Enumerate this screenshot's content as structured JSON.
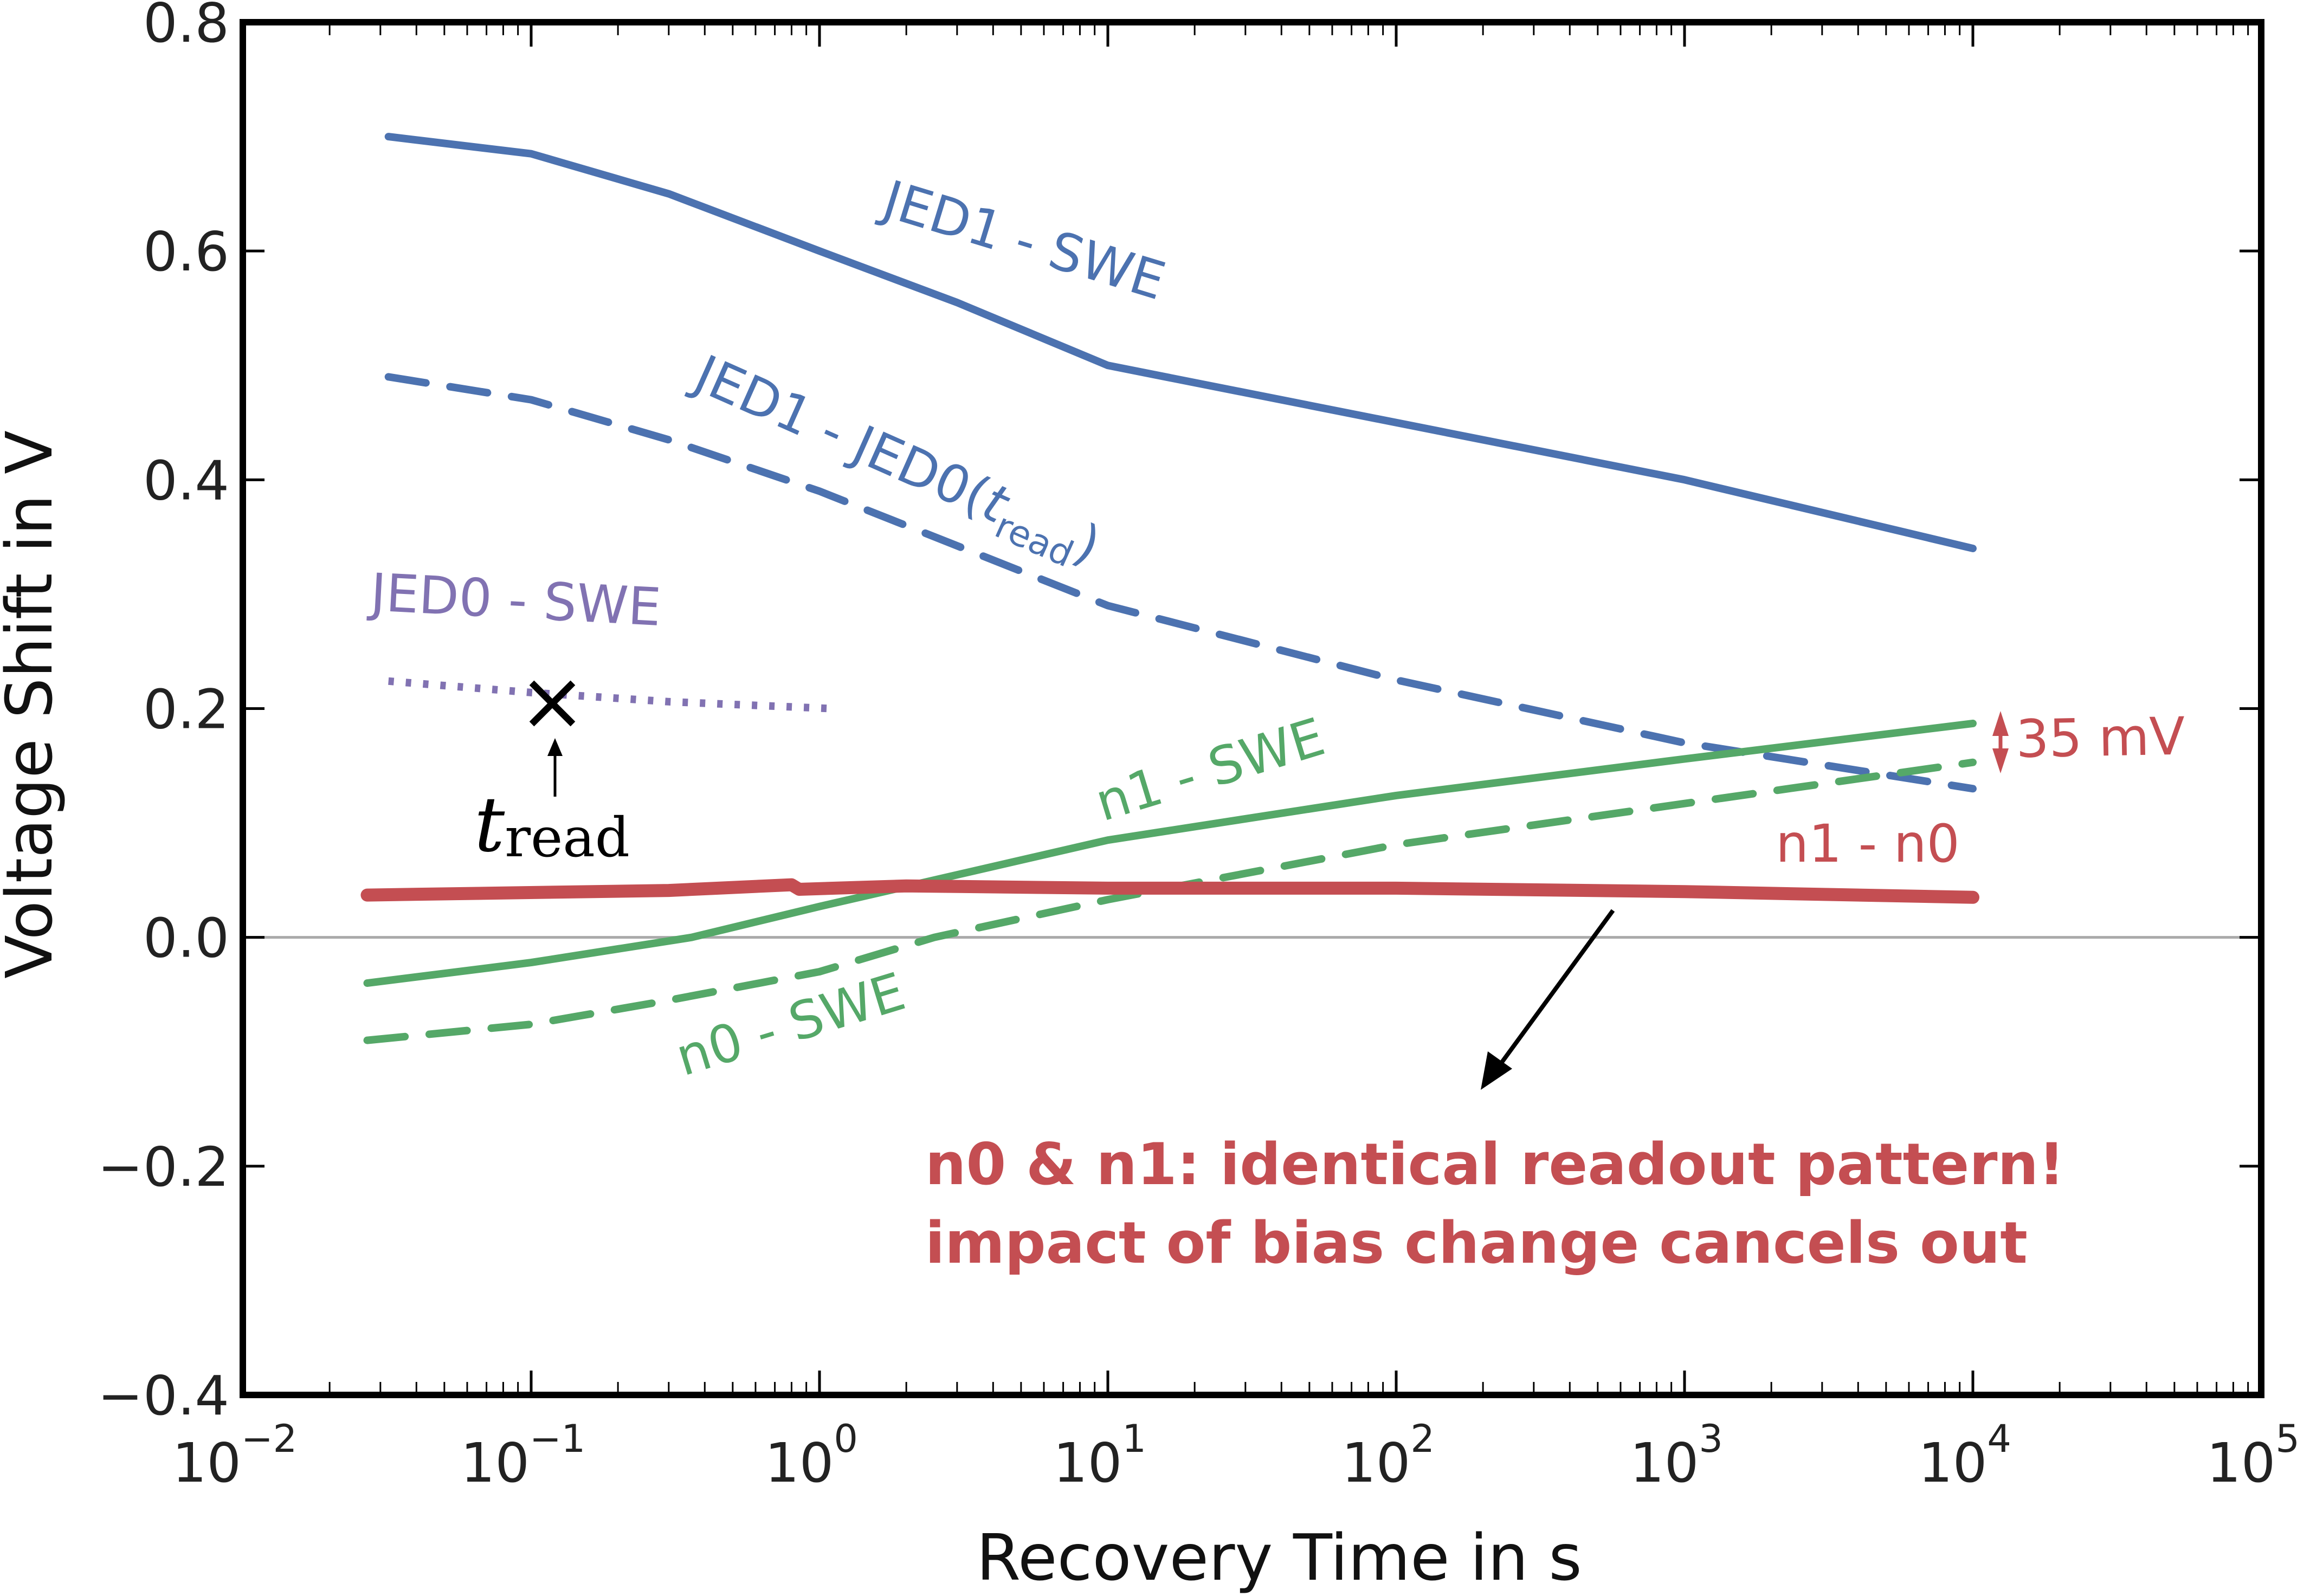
{
  "chart_data": {
    "type": "line",
    "xlabel": "Recovery Time in s",
    "ylabel": "Voltage Shift in V",
    "xscale": "log",
    "xlim": [
      0.01,
      100000
    ],
    "ylim": [
      -0.4,
      0.8
    ],
    "x_tick_labels": [
      {
        "base": "10",
        "exp": "−2"
      },
      {
        "base": "10",
        "exp": "−1"
      },
      {
        "base": "10",
        "exp": "0"
      },
      {
        "base": "10",
        "exp": "1"
      },
      {
        "base": "10",
        "exp": "2"
      },
      {
        "base": "10",
        "exp": "3"
      },
      {
        "base": "10",
        "exp": "4"
      },
      {
        "base": "10",
        "exp": "5"
      }
    ],
    "y_tick_labels": [
      "0.8",
      "0.6",
      "0.4",
      "0.2",
      "0.0",
      "−0.2",
      "−0.4"
    ],
    "y_ticks": [
      0.8,
      0.6,
      0.4,
      0.2,
      0.0,
      -0.2,
      -0.4
    ],
    "zero_line": true,
    "series": [
      {
        "name": "JED1 - SWE",
        "color": "#4C72B0",
        "style": "solid",
        "x": [
          0.032,
          0.1,
          0.3,
          1,
          3,
          10,
          100,
          1000,
          10000
        ],
        "y": [
          0.7,
          0.685,
          0.65,
          0.6,
          0.555,
          0.5,
          0.45,
          0.4,
          0.34
        ]
      },
      {
        "name": "JED1 - JED0(t_read)",
        "color": "#4C72B0",
        "style": "dashed",
        "x": [
          0.032,
          0.1,
          0.3,
          1,
          10,
          100,
          1000,
          10000
        ],
        "y": [
          0.49,
          0.47,
          0.435,
          0.39,
          0.29,
          0.225,
          0.17,
          0.13
        ]
      },
      {
        "name": "JED0 - SWE",
        "color": "#8172B2",
        "style": "dotted",
        "x": [
          0.032,
          0.1,
          0.3,
          1.1
        ],
        "y": [
          0.224,
          0.214,
          0.206,
          0.2
        ]
      },
      {
        "name": "n1 - SWE",
        "color": "#55A868",
        "style": "solid",
        "x": [
          0.027,
          0.1,
          0.36,
          1,
          10,
          100,
          1000,
          10000
        ],
        "y": [
          -0.04,
          -0.022,
          0.0,
          0.027,
          0.085,
          0.124,
          0.156,
          0.187
        ]
      },
      {
        "name": "n0 - SWE",
        "color": "#55A868",
        "style": "dashed",
        "x": [
          0.027,
          0.1,
          0.3,
          1,
          2.5,
          10,
          100,
          1000,
          10000
        ],
        "y": [
          -0.09,
          -0.076,
          -0.055,
          -0.03,
          0.0,
          0.033,
          0.081,
          0.117,
          0.153
        ]
      },
      {
        "name": "n1 - n0",
        "color": "#C44E52",
        "style": "solid",
        "x": [
          0.027,
          0.3,
          0.8,
          0.85,
          2,
          10,
          100,
          1000,
          10000
        ],
        "y": [
          0.037,
          0.041,
          0.046,
          0.042,
          0.045,
          0.043,
          0.043,
          0.04,
          0.035
        ]
      }
    ],
    "series_labels": {
      "jed1_swe": {
        "text": "JED1 - SWE"
      },
      "jed1_jed0": {
        "main": "JED1 - JED0(",
        "t": "t",
        "sub": "read",
        ")": ")"
      },
      "jed0_swe": {
        "text": "JED0 - SWE"
      },
      "n1_swe": {
        "text": "n1 - SWE"
      },
      "n0_swe": {
        "text": "n0 - SWE"
      },
      "n1_n0": {
        "text": "n1 - n0"
      }
    },
    "annotations": {
      "tread_marker": {
        "x": 0.117,
        "y": 0.212,
        "symbol": "×",
        "t": "t",
        "sub": "read"
      },
      "delta": {
        "text": "35 mV"
      },
      "note_line1": "n0 & n1: identical readout pattern!",
      "note_line2": "impact of bias change cancels out"
    }
  }
}
